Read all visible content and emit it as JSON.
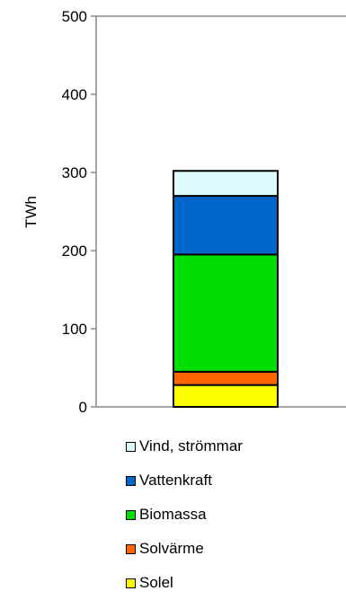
{
  "chart_data": {
    "type": "bar",
    "stacked": true,
    "title": "",
    "xlabel": "",
    "ylabel": "TWh",
    "ylim": [
      0,
      500
    ],
    "yticks": [
      0,
      100,
      200,
      300,
      400,
      500
    ],
    "categories": [
      ""
    ],
    "grid": false,
    "legend_position": "bottom",
    "series": [
      {
        "name": "Solel",
        "color": "#ffff00",
        "values": [
          28
        ]
      },
      {
        "name": "Solvärme",
        "color": "#ff6600",
        "values": [
          17
        ]
      },
      {
        "name": "Biomassa",
        "color": "#00dd00",
        "values": [
          150
        ]
      },
      {
        "name": "Vattenkraft",
        "color": "#0066cc",
        "values": [
          75
        ]
      },
      {
        "name": "Vind, strömmar",
        "color": "#ddfaff",
        "values": [
          32
        ]
      }
    ],
    "legend_order": [
      "Vind, strömmar",
      "Vattenkraft",
      "Biomassa",
      "Solvärme",
      "Solel"
    ]
  }
}
